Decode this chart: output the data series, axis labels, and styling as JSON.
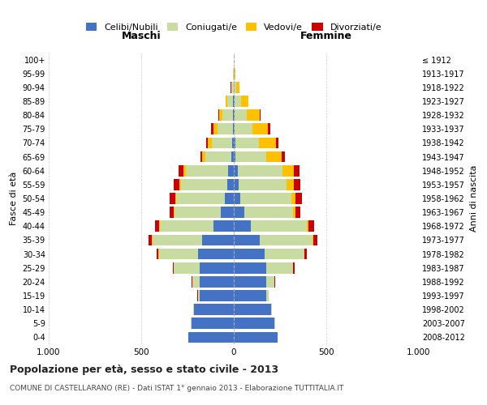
{
  "age_groups": [
    "0-4",
    "5-9",
    "10-14",
    "15-19",
    "20-24",
    "25-29",
    "30-34",
    "35-39",
    "40-44",
    "45-49",
    "50-54",
    "55-59",
    "60-64",
    "65-69",
    "70-74",
    "75-79",
    "80-84",
    "85-89",
    "90-94",
    "95-99",
    "100+"
  ],
  "birth_years": [
    "2008-2012",
    "2003-2007",
    "1998-2002",
    "1993-1997",
    "1988-1992",
    "1983-1987",
    "1978-1982",
    "1973-1977",
    "1968-1972",
    "1963-1967",
    "1958-1962",
    "1953-1957",
    "1948-1952",
    "1943-1947",
    "1938-1942",
    "1933-1937",
    "1928-1932",
    "1923-1927",
    "1918-1922",
    "1913-1917",
    "≤ 1912"
  ],
  "males": {
    "celibe": [
      245,
      230,
      215,
      185,
      185,
      185,
      195,
      170,
      110,
      70,
      50,
      35,
      30,
      12,
      10,
      6,
      5,
      4,
      2,
      1,
      0
    ],
    "coniugato": [
      1,
      2,
      5,
      10,
      40,
      140,
      210,
      270,
      290,
      250,
      260,
      250,
      230,
      140,
      110,
      80,
      55,
      30,
      10,
      2,
      1
    ],
    "vedovo": [
      0,
      0,
      0,
      0,
      0,
      0,
      1,
      1,
      2,
      3,
      5,
      8,
      12,
      18,
      20,
      25,
      20,
      10,
      3,
      1,
      0
    ],
    "divorziato": [
      0,
      0,
      0,
      1,
      2,
      5,
      10,
      20,
      25,
      22,
      30,
      30,
      25,
      12,
      10,
      10,
      5,
      2,
      1,
      0,
      0
    ]
  },
  "females": {
    "nubile": [
      235,
      220,
      200,
      175,
      175,
      175,
      165,
      140,
      90,
      55,
      35,
      25,
      20,
      10,
      8,
      5,
      4,
      3,
      2,
      1,
      0
    ],
    "coniugata": [
      1,
      2,
      5,
      12,
      45,
      145,
      215,
      285,
      305,
      265,
      275,
      260,
      245,
      165,
      130,
      95,
      65,
      35,
      12,
      3,
      1
    ],
    "vedova": [
      0,
      0,
      0,
      0,
      0,
      1,
      3,
      5,
      8,
      15,
      25,
      40,
      60,
      85,
      90,
      85,
      70,
      40,
      15,
      4,
      1
    ],
    "divorziata": [
      0,
      0,
      0,
      1,
      2,
      6,
      12,
      22,
      30,
      25,
      35,
      35,
      30,
      15,
      15,
      12,
      6,
      3,
      1,
      0,
      0
    ]
  },
  "color_celibe": "#4472c4",
  "color_coniugato": "#c8dba0",
  "color_vedovo": "#ffc000",
  "color_divorziato": "#cc0000",
  "title": "Popolazione per età, sesso e stato civile - 2013",
  "subtitle": "COMUNE DI CASTELLARANO (RE) - Dati ISTAT 1° gennaio 2013 - Elaborazione TUTTITALIA.IT",
  "xlabel_maschi": "Maschi",
  "xlabel_femmine": "Femmine",
  "ylabel_left": "Fasce di età",
  "ylabel_right": "Anni di nascita",
  "xlim": 1000,
  "bg_color": "#ffffff",
  "grid_color": "#cccccc"
}
